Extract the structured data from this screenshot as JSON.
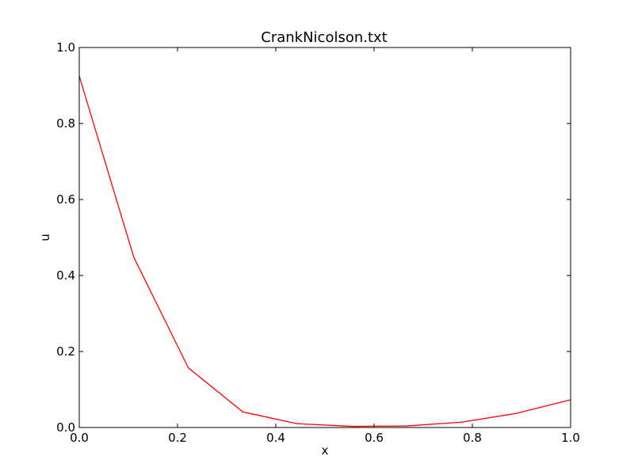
{
  "chart_data": {
    "type": "line",
    "title": "CrankNicolson.txt",
    "xlabel": "x",
    "ylabel": "u",
    "xlim": [
      0,
      1
    ],
    "ylim": [
      0,
      1
    ],
    "xticks": [
      "0.0",
      "0.2",
      "0.4",
      "0.6",
      "0.8",
      "1.0"
    ],
    "yticks": [
      "0.0",
      "0.2",
      "0.4",
      "0.6",
      "0.8",
      "1.0"
    ],
    "grid": false,
    "series": [
      {
        "color": "#ff0000",
        "x": [
          0.0,
          0.111,
          0.222,
          0.333,
          0.444,
          0.556,
          0.667,
          0.778,
          0.889,
          1.0
        ],
        "y": [
          0.925,
          0.448,
          0.157,
          0.041,
          0.01,
          0.003,
          0.004,
          0.014,
          0.037,
          0.073
        ]
      }
    ]
  }
}
